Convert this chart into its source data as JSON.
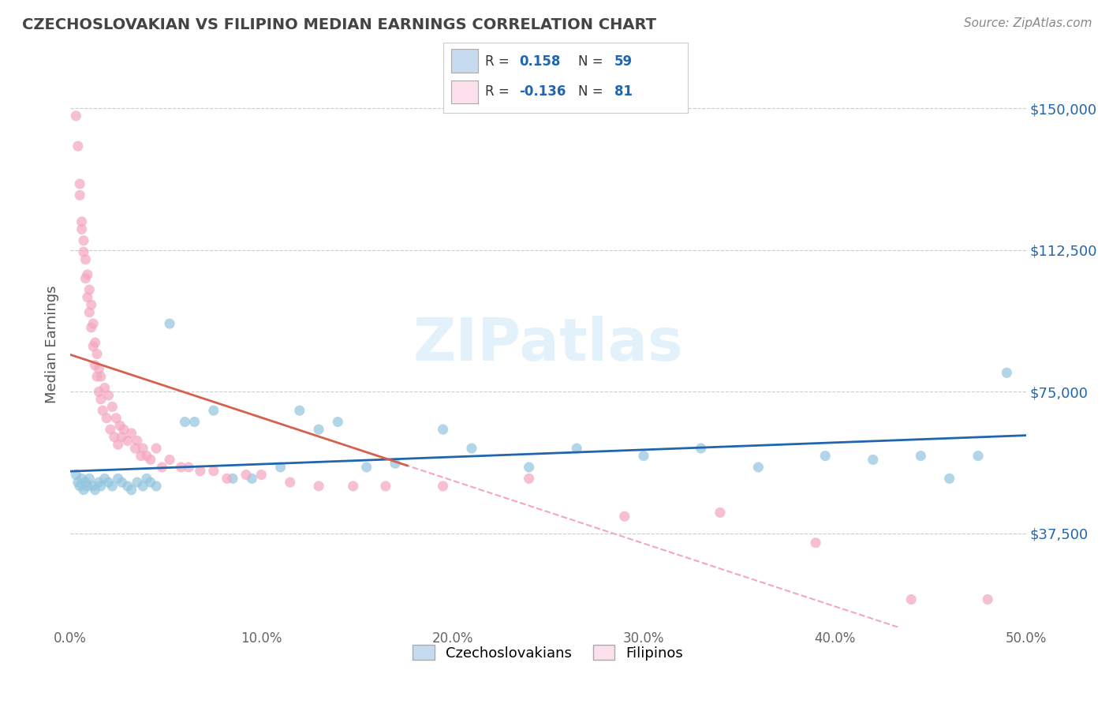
{
  "title": "CZECHOSLOVAKIAN VS FILIPINO MEDIAN EARNINGS CORRELATION CHART",
  "source": "Source: ZipAtlas.com",
  "ylabel": "Median Earnings",
  "xlim": [
    0.0,
    0.5
  ],
  "ylim": [
    12500,
    162500
  ],
  "yticks": [
    37500,
    75000,
    112500,
    150000
  ],
  "ytick_labels": [
    "$37,500",
    "$75,000",
    "$112,500",
    "$150,000"
  ],
  "xticks": [
    0.0,
    0.1,
    0.2,
    0.3,
    0.4,
    0.5
  ],
  "xtick_labels": [
    "0.0%",
    "10.0%",
    "20.0%",
    "30.0%",
    "40.0%",
    "50.0%"
  ],
  "blue_color": "#92c5de",
  "pink_color": "#f4a6bf",
  "blue_fill": "#c6dbef",
  "pink_fill": "#fce0ec",
  "line_blue": "#2166ac",
  "line_pink": "#d6604d",
  "dashed_blue": "#92c5de",
  "dashed_pink": "#f4a6bf",
  "background_color": "#ffffff",
  "grid_color": "#cccccc",
  "title_color": "#444444",
  "watermark": "ZIPatlas",
  "blue_R": "0.158",
  "blue_N": "59",
  "pink_R": "-0.136",
  "pink_N": "81",
  "blue_scatter_x": [
    0.003,
    0.004,
    0.005,
    0.006,
    0.007,
    0.008,
    0.009,
    0.01,
    0.012,
    0.013,
    0.015,
    0.016,
    0.018,
    0.02,
    0.022,
    0.025,
    0.027,
    0.03,
    0.032,
    0.035,
    0.038,
    0.04,
    0.042,
    0.045,
    0.052,
    0.06,
    0.065,
    0.075,
    0.085,
    0.095,
    0.11,
    0.12,
    0.13,
    0.14,
    0.155,
    0.17,
    0.195,
    0.21,
    0.24,
    0.265,
    0.3,
    0.33,
    0.36,
    0.395,
    0.42,
    0.445,
    0.46,
    0.475,
    0.49
  ],
  "blue_scatter_y": [
    53000,
    51000,
    50000,
    52000,
    49000,
    51000,
    50000,
    52000,
    50000,
    49000,
    51000,
    50000,
    52000,
    51000,
    50000,
    52000,
    51000,
    50000,
    49000,
    51000,
    50000,
    52000,
    51000,
    50000,
    93000,
    67000,
    67000,
    70000,
    52000,
    52000,
    55000,
    70000,
    65000,
    67000,
    55000,
    56000,
    65000,
    60000,
    55000,
    60000,
    58000,
    60000,
    55000,
    58000,
    57000,
    58000,
    52000,
    58000,
    80000
  ],
  "pink_scatter_x": [
    0.003,
    0.004,
    0.005,
    0.005,
    0.006,
    0.006,
    0.007,
    0.007,
    0.008,
    0.008,
    0.009,
    0.009,
    0.01,
    0.01,
    0.011,
    0.011,
    0.012,
    0.012,
    0.013,
    0.013,
    0.014,
    0.014,
    0.015,
    0.015,
    0.016,
    0.016,
    0.017,
    0.018,
    0.019,
    0.02,
    0.021,
    0.022,
    0.023,
    0.024,
    0.025,
    0.026,
    0.027,
    0.028,
    0.03,
    0.032,
    0.034,
    0.035,
    0.037,
    0.038,
    0.04,
    0.042,
    0.045,
    0.048,
    0.052,
    0.058,
    0.062,
    0.068,
    0.075,
    0.082,
    0.092,
    0.1,
    0.115,
    0.13,
    0.148,
    0.165,
    0.195,
    0.24,
    0.29,
    0.34,
    0.39,
    0.44,
    0.48
  ],
  "pink_scatter_y": [
    148000,
    140000,
    130000,
    127000,
    120000,
    118000,
    112000,
    115000,
    105000,
    110000,
    100000,
    106000,
    96000,
    102000,
    92000,
    98000,
    87000,
    93000,
    82000,
    88000,
    79000,
    85000,
    75000,
    81000,
    73000,
    79000,
    70000,
    76000,
    68000,
    74000,
    65000,
    71000,
    63000,
    68000,
    61000,
    66000,
    63000,
    65000,
    62000,
    64000,
    60000,
    62000,
    58000,
    60000,
    58000,
    57000,
    60000,
    55000,
    57000,
    55000,
    55000,
    54000,
    54000,
    52000,
    53000,
    53000,
    51000,
    50000,
    50000,
    50000,
    50000,
    52000,
    42000,
    43000,
    35000,
    20000,
    20000
  ]
}
